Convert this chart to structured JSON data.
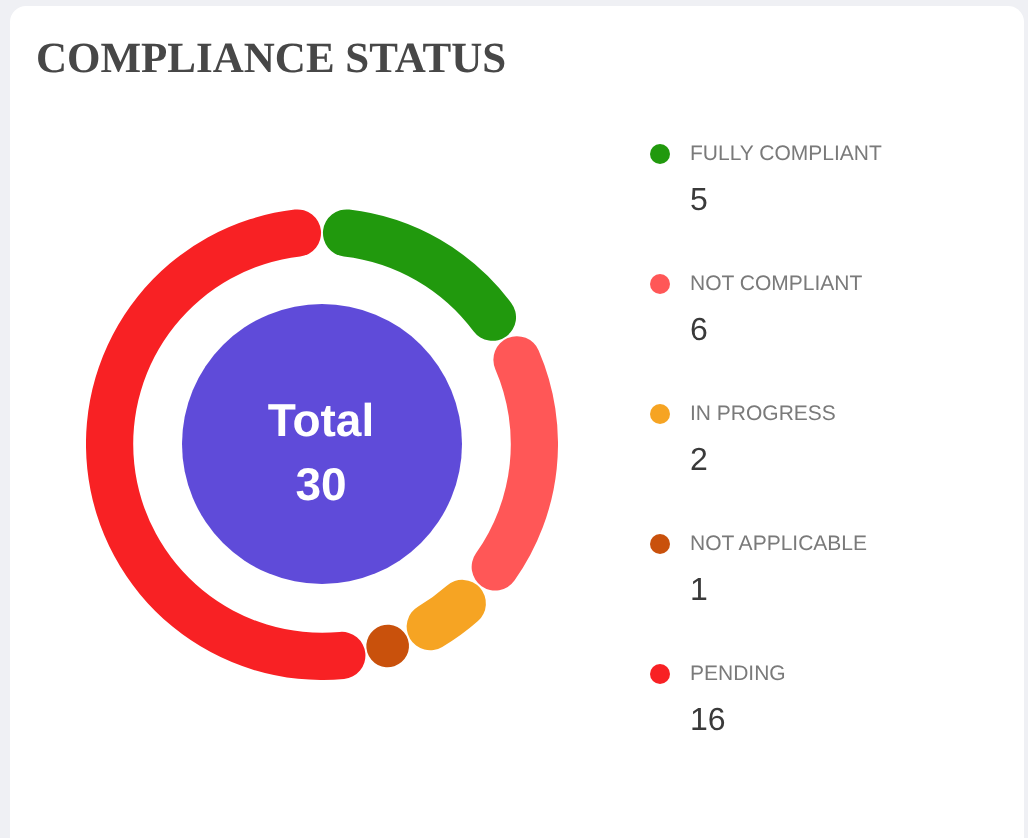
{
  "chart_data": {
    "type": "donut",
    "title": "COMPLIANCE STATUS",
    "categories": [
      "FULLY COMPLIANT",
      "NOT COMPLIANT",
      "IN PROGRESS",
      "NOT APPLICABLE",
      "PENDING"
    ],
    "values": [
      5,
      6,
      2,
      1,
      16
    ],
    "colors": [
      "#21990d",
      "#ff5757",
      "#f6a423",
      "#c9510c",
      "#f82124"
    ],
    "legend": "right",
    "data_labels": true,
    "annotations": [
      "Total",
      "30"
    ]
  }
}
